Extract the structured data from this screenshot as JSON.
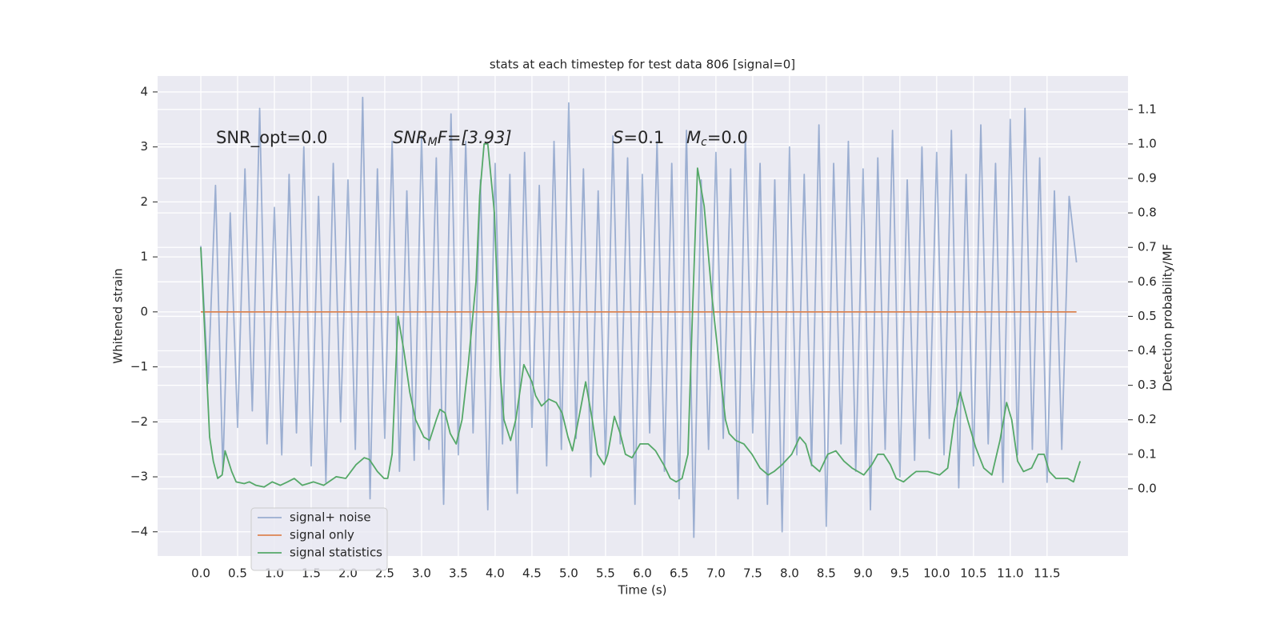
{
  "chart_data": {
    "type": "line",
    "title": "stats at each timestep for test data 806 [signal=0]",
    "xlabel": "Time (s)",
    "ylabel": "Whitened strain",
    "y2label": "Detection probability/MF",
    "xlim": [
      -0.587,
      12.6
    ],
    "ylim": [
      -4.44,
      4.29
    ],
    "y2lim": [
      -0.195,
      1.197
    ],
    "xticks": [
      {
        "value": 0,
        "label": "0.0"
      },
      0.5,
      {
        "value": 1,
        "label": "1.0"
      },
      1.5,
      {
        "value": 2,
        "label": "2.0"
      },
      2.5,
      {
        "value": 3,
        "label": "3.0"
      },
      3.5,
      {
        "value": 4,
        "label": "4.0"
      },
      4.5,
      {
        "value": 5,
        "label": "5.0"
      },
      5.5,
      {
        "value": 6,
        "label": "6.0"
      },
      6.5,
      {
        "value": 7,
        "label": "7.0"
      },
      7.5,
      {
        "value": 8,
        "label": "8.0"
      },
      8.5,
      {
        "value": 9,
        "label": "9.0"
      },
      9.5,
      {
        "value": 10,
        "label": "10.0"
      },
      10.5,
      {
        "value": 11,
        "label": "11.0"
      },
      11.5
    ],
    "yticks": [
      {
        "value": -4,
        "label": "−4"
      },
      {
        "value": -3,
        "label": "−3"
      },
      {
        "value": -2,
        "label": "−2"
      },
      {
        "value": -1,
        "label": "−1"
      },
      0,
      1,
      2,
      3,
      4
    ],
    "y2ticks": [
      {
        "value": 0,
        "label": "0.0"
      },
      0.1,
      0.2,
      0.3,
      0.4,
      0.5,
      0.6,
      0.7,
      0.8,
      0.9,
      {
        "value": 1,
        "label": "1.0"
      },
      1.1
    ],
    "grid": true,
    "legend": "lower left",
    "annotations": [
      {
        "text": "SNR_opt=0.0"
      },
      {
        "text": "SNR",
        "sub": "M",
        "after": "F=[3.93]"
      },
      {
        "text": "S",
        "after": "=0.1"
      },
      {
        "text": "M",
        "sub": "c",
        "after": "=0.0"
      }
    ],
    "series": [
      {
        "name": "signal+ noise",
        "color": "#4c72b0",
        "alpha": 0.5,
        "x": [
          0,
          0.1,
          0.2,
          0.3,
          0.4,
          0.5,
          0.6,
          0.7,
          0.8,
          0.9,
          1,
          1.1,
          1.2,
          1.3,
          1.4,
          1.5,
          1.6,
          1.7,
          1.8,
          1.9,
          2,
          2.1,
          2.2,
          2.3,
          2.4,
          2.5,
          2.6,
          2.7,
          2.8,
          2.9,
          3,
          3.1,
          3.2,
          3.3,
          3.4,
          3.5,
          3.6,
          3.7,
          3.8,
          3.9,
          4,
          4.1,
          4.2,
          4.3,
          4.4,
          4.5,
          4.6,
          4.7,
          4.8,
          4.9,
          5,
          5.1,
          5.2,
          5.3,
          5.4,
          5.5,
          5.6,
          5.7,
          5.8,
          5.9,
          6,
          6.1,
          6.2,
          6.3,
          6.4,
          6.5,
          6.6,
          6.7,
          6.8,
          6.9,
          7,
          7.1,
          7.2,
          7.3,
          7.4,
          7.5,
          7.6,
          7.7,
          7.8,
          7.9,
          8,
          8.1,
          8.2,
          8.3,
          8.4,
          8.5,
          8.6,
          8.7,
          8.8,
          8.9,
          9,
          9.1,
          9.2,
          9.3,
          9.4,
          9.5,
          9.6,
          9.7,
          9.8,
          9.9,
          10,
          10.1,
          10.2,
          10.3,
          10.4,
          10.5,
          10.6,
          10.7,
          10.8,
          10.9,
          11,
          11.1,
          11.2,
          11.3,
          11.4,
          11.5,
          11.6,
          11.7,
          11.8,
          11.9
        ],
        "values": [
          1.2,
          -1.3,
          2.3,
          -2.9,
          1.8,
          -2.1,
          2.6,
          -1.8,
          3.7,
          -2.4,
          1.9,
          -2.6,
          2.5,
          -2.2,
          3.0,
          -2.8,
          2.1,
          -3.1,
          2.7,
          -2.0,
          2.4,
          -2.5,
          3.9,
          -3.4,
          2.6,
          -2.3,
          3.1,
          -2.9,
          2.2,
          -2.7,
          3.2,
          -2.5,
          2.8,
          -3.5,
          3.6,
          -2.6,
          3.1,
          -2.2,
          2.4,
          -3.6,
          2.7,
          -2.4,
          2.5,
          -3.3,
          2.9,
          -2.1,
          2.3,
          -2.8,
          3.1,
          -2.5,
          3.8,
          -2.3,
          2.6,
          -3.0,
          2.2,
          -2.7,
          3.2,
          -2.4,
          2.8,
          -3.5,
          2.5,
          -2.2,
          3.1,
          -2.9,
          2.7,
          -3.4,
          3.3,
          -4.1,
          2.4,
          -2.5,
          2.9,
          -2.3,
          2.6,
          -3.4,
          3.2,
          -2.2,
          2.7,
          -3.5,
          2.4,
          -4.0,
          3.0,
          -2.6,
          2.5,
          -2.8,
          3.4,
          -3.9,
          2.7,
          -2.4,
          3.1,
          -2.9,
          2.6,
          -3.6,
          2.8,
          -2.5,
          3.3,
          -3.0,
          2.4,
          -2.7,
          3.0,
          -2.3,
          2.9,
          -2.6,
          3.3,
          -3.2,
          2.5,
          -2.8,
          3.4,
          -2.4,
          2.7,
          -3.1,
          3.5,
          -2.6,
          3.7,
          -2.5,
          2.8,
          -3.1,
          2.2,
          -2.5,
          2.1,
          0.9
        ]
      },
      {
        "name": "signal only",
        "color": "#dd8452",
        "x": [
          0,
          11.9
        ],
        "values": [
          0,
          0
        ]
      },
      {
        "name": "signal statistics",
        "color": "#55a868",
        "axis": "y2",
        "x": [
          0,
          0.12,
          0.17,
          0.23,
          0.29,
          0.33,
          0.42,
          0.48,
          0.59,
          0.66,
          0.75,
          0.86,
          0.97,
          1.08,
          1.18,
          1.27,
          1.38,
          1.53,
          1.67,
          1.84,
          1.97,
          2.11,
          2.22,
          2.29,
          2.4,
          2.49,
          2.54,
          2.6,
          2.68,
          2.76,
          2.84,
          2.92,
          3.03,
          3.11,
          3.2,
          3.25,
          3.32,
          3.39,
          3.47,
          3.55,
          3.63,
          3.74,
          3.79,
          3.85,
          3.9,
          3.99,
          4.07,
          4.12,
          4.21,
          4.28,
          4.39,
          4.5,
          4.55,
          4.63,
          4.73,
          4.83,
          4.91,
          4.99,
          5.05,
          5.15,
          5.23,
          5.32,
          5.39,
          5.48,
          5.53,
          5.62,
          5.7,
          5.77,
          5.86,
          5.97,
          6.08,
          6.18,
          6.29,
          6.38,
          6.46,
          6.54,
          6.62,
          6.68,
          6.75,
          6.84,
          6.95,
          7.05,
          7.13,
          7.18,
          7.27,
          7.38,
          7.49,
          7.6,
          7.71,
          7.79,
          7.9,
          8.03,
          8.14,
          8.22,
          8.3,
          8.41,
          8.52,
          8.63,
          8.74,
          8.85,
          9.01,
          9.12,
          9.2,
          9.28,
          9.37,
          9.45,
          9.55,
          9.66,
          9.72,
          9.88,
          10.04,
          10.15,
          10.24,
          10.32,
          10.42,
          10.53,
          10.64,
          10.75,
          10.86,
          10.95,
          11.02,
          11.1,
          11.18,
          11.29,
          11.38,
          11.46,
          11.53,
          11.62,
          11.78,
          11.86,
          11.95
        ],
        "values": [
          0.7,
          0.15,
          0.08,
          0.03,
          0.04,
          0.11,
          0.05,
          0.02,
          0.015,
          0.02,
          0.01,
          0.005,
          0.02,
          0.01,
          0.02,
          0.03,
          0.01,
          0.02,
          0.01,
          0.035,
          0.03,
          0.07,
          0.09,
          0.085,
          0.05,
          0.03,
          0.03,
          0.1,
          0.5,
          0.4,
          0.28,
          0.2,
          0.15,
          0.14,
          0.2,
          0.23,
          0.22,
          0.16,
          0.13,
          0.2,
          0.35,
          0.6,
          0.85,
          1.0,
          1.0,
          0.8,
          0.33,
          0.2,
          0.14,
          0.2,
          0.36,
          0.31,
          0.27,
          0.24,
          0.26,
          0.25,
          0.22,
          0.15,
          0.11,
          0.22,
          0.31,
          0.2,
          0.1,
          0.07,
          0.1,
          0.21,
          0.16,
          0.1,
          0.09,
          0.13,
          0.13,
          0.11,
          0.07,
          0.03,
          0.02,
          0.03,
          0.1,
          0.5,
          0.93,
          0.82,
          0.55,
          0.35,
          0.2,
          0.16,
          0.14,
          0.13,
          0.1,
          0.06,
          0.04,
          0.05,
          0.07,
          0.1,
          0.15,
          0.13,
          0.07,
          0.05,
          0.1,
          0.11,
          0.08,
          0.06,
          0.04,
          0.07,
          0.1,
          0.1,
          0.07,
          0.03,
          0.02,
          0.04,
          0.05,
          0.05,
          0.04,
          0.06,
          0.2,
          0.28,
          0.2,
          0.12,
          0.06,
          0.04,
          0.14,
          0.25,
          0.2,
          0.08,
          0.05,
          0.06,
          0.1,
          0.1,
          0.05,
          0.03,
          0.03,
          0.02,
          0.08
        ]
      }
    ]
  }
}
